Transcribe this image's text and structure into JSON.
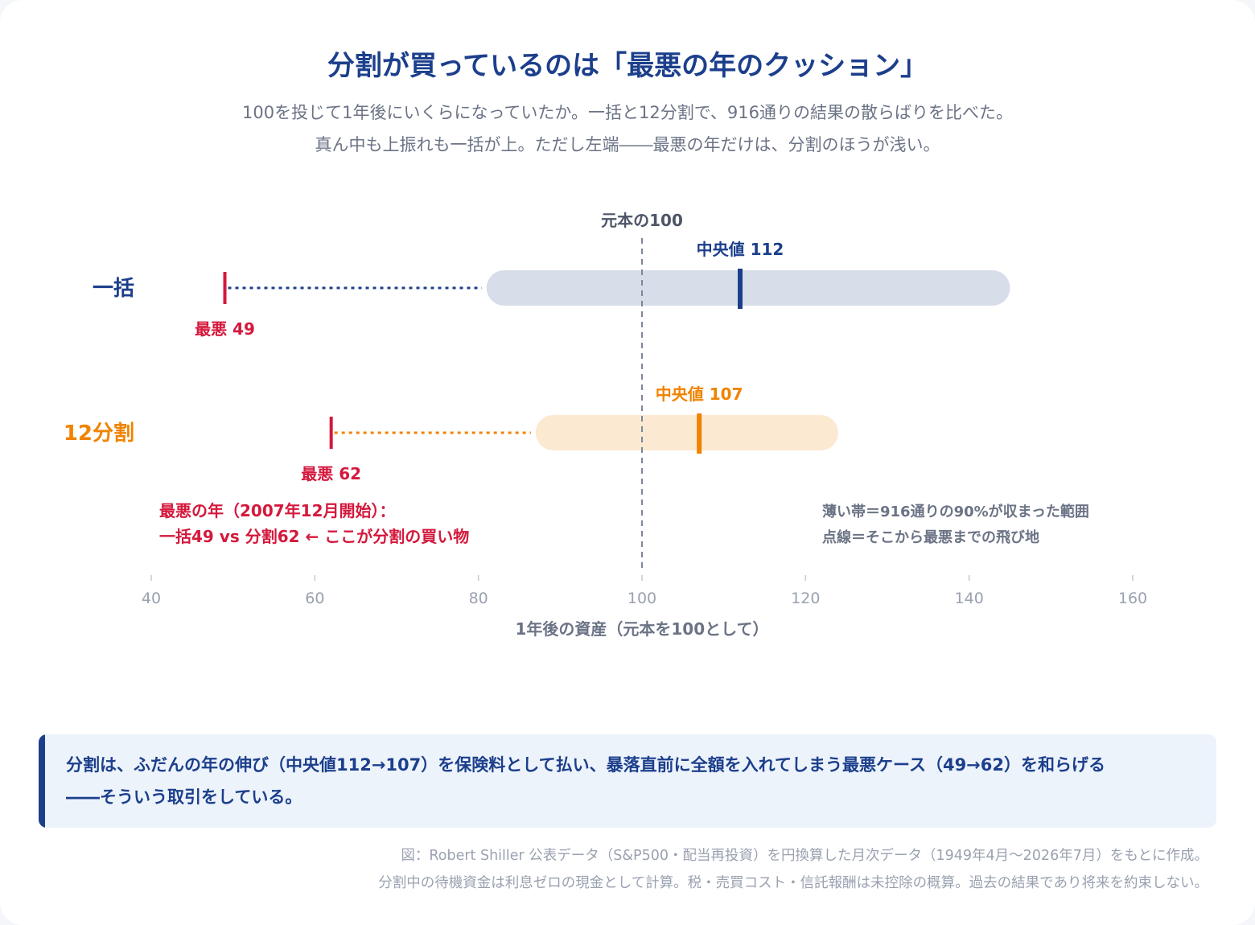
{
  "title": "分割が買っているのは「最悪の年のクッション」",
  "subtitle_line1": "100を投じて1年後にいくらになっていたか。一括と12分割で、916通りの結果の散らばりを比べた。",
  "subtitle_line2": "真ん中も上振れも一括が上。ただし左端――最悪の年だけは、分割のほうが浅い。",
  "colors": {
    "lump": "#1c3f8c",
    "split": "#f08300",
    "worst": "#d4183c",
    "lump_band": "#d7dde9",
    "split_band": "#fce9d2",
    "muted": "#6b7385",
    "axis": "#9aa1b0"
  },
  "chart_data": {
    "type": "range",
    "xlabel": "1年後の資産（元本を100として）",
    "xlim": [
      40,
      160
    ],
    "xticks": [
      40,
      60,
      80,
      100,
      120,
      140,
      160
    ],
    "xtick_labels": [
      "40",
      "60",
      "80",
      "100",
      "120",
      "140",
      "160"
    ],
    "reference": {
      "value": 100,
      "label": "元本の100"
    },
    "series": [
      {
        "name": "一括",
        "band_low": 81,
        "band_high": 145,
        "median": 112,
        "median_label": "中央値 112",
        "worst": 49,
        "worst_label": "最悪 49"
      },
      {
        "name": "12分割",
        "band_low": 87,
        "band_high": 124,
        "median": 107,
        "median_label": "中央値 107",
        "worst": 62,
        "worst_label": "最悪 62"
      }
    ],
    "annotation_worst_line1": "最悪の年（2007年12月開始）：",
    "annotation_worst_line2": "一括49 vs 分割62 ← ここが分割の買い物",
    "legend_line1": "薄い帯＝916通りの90%が収まった範囲",
    "legend_line2": "点線＝そこから最悪までの飛び地"
  },
  "takeaway": "分割は、ふだんの年の伸び（中央値112→107）を保険料として払い、暴落直前に全額を入れてしまう最悪ケース（49→62）を和らげる――そういう取引をしている。",
  "footnote_line1": "図：Robert Shiller 公表データ（S&P500・配当再投資）を円換算した月次データ（1949年4月〜2026年7月）をもとに作成。",
  "footnote_line2": "分割中の待機資金は利息ゼロの現金として計算。税・売買コスト・信託報酬は未控除の概算。過去の結果であり将来を約束しない。"
}
